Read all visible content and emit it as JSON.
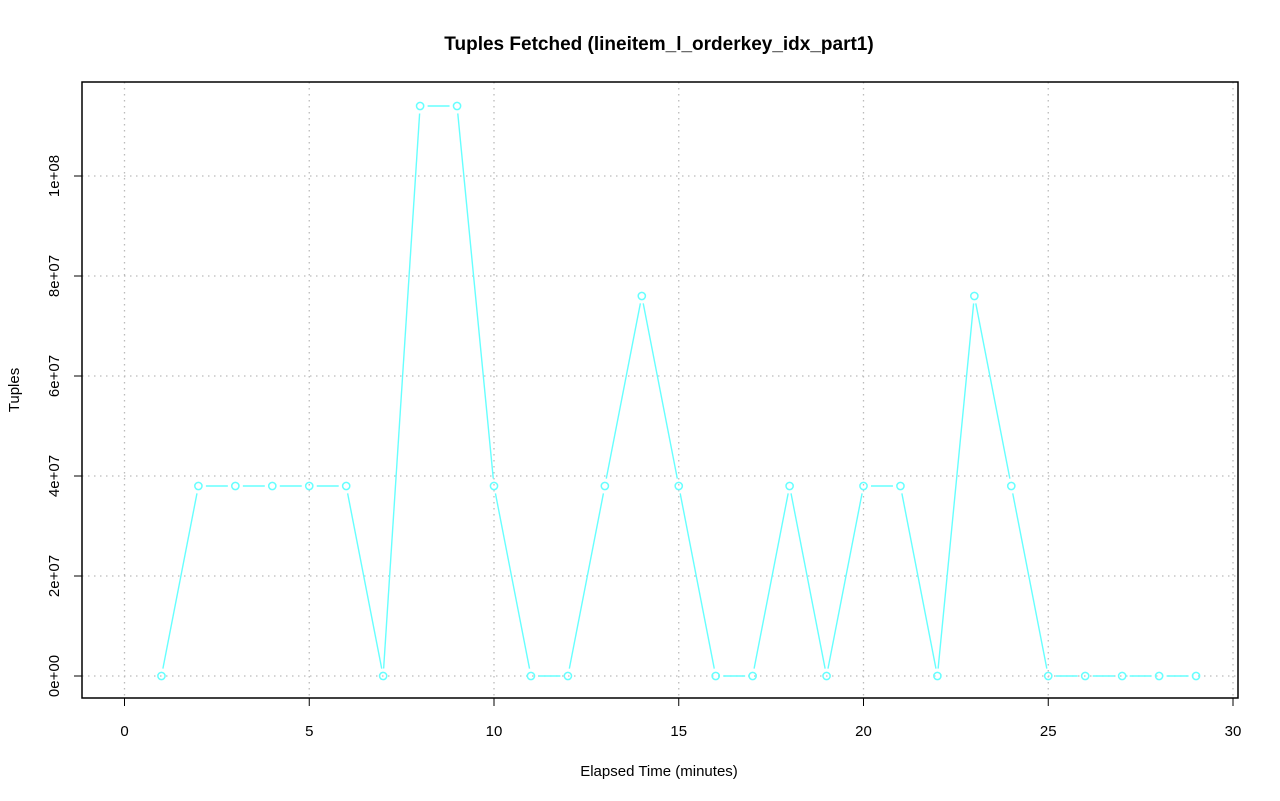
{
  "chart_data": {
    "type": "line",
    "title": "Tuples Fetched (lineitem_l_orderkey_idx_part1)",
    "xlabel": "Elapsed Time (minutes)",
    "ylabel": "Tuples",
    "xlim": [
      0,
      30
    ],
    "ylim": [
      0,
      114000000
    ],
    "x_ticks": [
      0,
      5,
      10,
      15,
      20,
      25,
      30
    ],
    "x_tick_labels": [
      "0",
      "5",
      "10",
      "15",
      "20",
      "25",
      "30"
    ],
    "y_ticks": [
      0,
      20000000,
      40000000,
      60000000,
      80000000,
      100000000
    ],
    "y_tick_labels": [
      "0e+00",
      "2e+07",
      "4e+07",
      "6e+07",
      "8e+07",
      "1e+08"
    ],
    "grid": true,
    "series": [
      {
        "color": "#66ffff",
        "marker": "open-circle",
        "x": [
          1,
          2,
          3,
          4,
          5,
          6,
          7,
          8,
          9,
          10,
          11,
          12,
          13,
          14,
          15,
          16,
          17,
          18,
          19,
          20,
          21,
          22,
          23,
          24,
          25,
          26,
          27,
          28,
          29
        ],
        "y": [
          0,
          38000000,
          38000000,
          38000000,
          38000000,
          38000000,
          0,
          114000000,
          114000000,
          38000000,
          0,
          0,
          38000000,
          76000000,
          38000000,
          0,
          0,
          38000000,
          0,
          38000000,
          38000000,
          0,
          76000000,
          38000000,
          0,
          0,
          0,
          0,
          0
        ]
      }
    ]
  }
}
